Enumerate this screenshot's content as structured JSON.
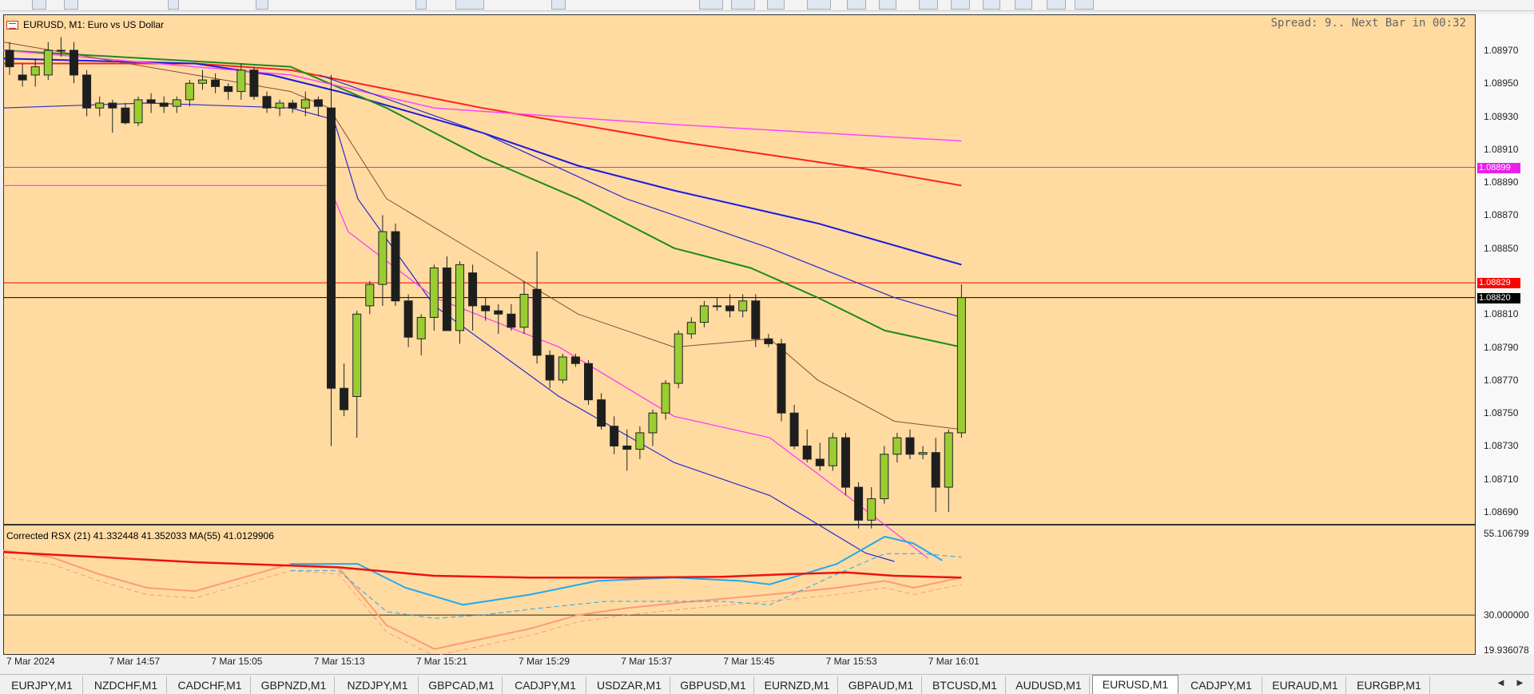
{
  "chart": {
    "title": "EURUSD, M1:  Euro vs US Dollar",
    "spread_text": "Spread: 9.. Next Bar in 00:32",
    "indicator_label": "Corrected RSX (21) 41.332448 41.352033 MA(55) 41.0129906",
    "price_axis": [
      "1.08970",
      "1.08950",
      "1.08930",
      "1.08910",
      "1.08890",
      "1.08870",
      "1.08850",
      "1.08810",
      "1.08790",
      "1.08770",
      "1.08750",
      "1.08730",
      "1.08710",
      "1.08690"
    ],
    "indicator_axis": [
      "55.106799",
      "30.000000",
      "19.936078"
    ],
    "time_axis": [
      "7 Mar 2024",
      "7 Mar 14:57",
      "7 Mar 15:05",
      "7 Mar 15:13",
      "7 Mar 15:21",
      "7 Mar 15:29",
      "7 Mar 15:37",
      "7 Mar 15:45",
      "7 Mar 15:53",
      "7 Mar 16:01"
    ],
    "price_tags": [
      {
        "value": "1.08899",
        "color": "#e91ee9"
      },
      {
        "value": "1.08829",
        "color": "#ff0000"
      },
      {
        "value": "1.08820",
        "color": "#000000"
      }
    ]
  },
  "chart_data": {
    "type": "candlestick",
    "ylim": [
      1.08675,
      1.08985
    ],
    "candles": [
      {
        "o": 1.0897,
        "h": 1.08975,
        "l": 1.08955,
        "c": 1.0896
      },
      {
        "o": 1.08955,
        "h": 1.08962,
        "l": 1.08948,
        "c": 1.08952
      },
      {
        "o": 1.08955,
        "h": 1.08965,
        "l": 1.08948,
        "c": 1.0896
      },
      {
        "o": 1.08955,
        "h": 1.08975,
        "l": 1.08952,
        "c": 1.0897
      },
      {
        "o": 1.0897,
        "h": 1.08978,
        "l": 1.08966,
        "c": 1.0897
      },
      {
        "o": 1.0897,
        "h": 1.08975,
        "l": 1.0895,
        "c": 1.08955
      },
      {
        "o": 1.08955,
        "h": 1.08958,
        "l": 1.0893,
        "c": 1.08935
      },
      {
        "o": 1.08935,
        "h": 1.08942,
        "l": 1.0893,
        "c": 1.08938
      },
      {
        "o": 1.08938,
        "h": 1.0894,
        "l": 1.0892,
        "c": 1.08935
      },
      {
        "o": 1.08935,
        "h": 1.08938,
        "l": 1.08925,
        "c": 1.08926
      },
      {
        "o": 1.08926,
        "h": 1.08942,
        "l": 1.08924,
        "c": 1.0894
      },
      {
        "o": 1.0894,
        "h": 1.08944,
        "l": 1.08932,
        "c": 1.08938
      },
      {
        "o": 1.08938,
        "h": 1.08942,
        "l": 1.08932,
        "c": 1.08936
      },
      {
        "o": 1.08936,
        "h": 1.08942,
        "l": 1.08932,
        "c": 1.0894
      },
      {
        "o": 1.0894,
        "h": 1.08952,
        "l": 1.08936,
        "c": 1.0895
      },
      {
        "o": 1.0895,
        "h": 1.08958,
        "l": 1.08946,
        "c": 1.08952
      },
      {
        "o": 1.08952,
        "h": 1.08956,
        "l": 1.08944,
        "c": 1.08948
      },
      {
        "o": 1.08948,
        "h": 1.0895,
        "l": 1.0894,
        "c": 1.08945
      },
      {
        "o": 1.08945,
        "h": 1.08962,
        "l": 1.0894,
        "c": 1.08958
      },
      {
        "o": 1.08958,
        "h": 1.0896,
        "l": 1.0894,
        "c": 1.08942
      },
      {
        "o": 1.08942,
        "h": 1.08945,
        "l": 1.08932,
        "c": 1.08935
      },
      {
        "o": 1.08935,
        "h": 1.0894,
        "l": 1.0893,
        "c": 1.08938
      },
      {
        "o": 1.08938,
        "h": 1.0894,
        "l": 1.08932,
        "c": 1.08935
      },
      {
        "o": 1.08935,
        "h": 1.08945,
        "l": 1.0893,
        "c": 1.0894
      },
      {
        "o": 1.0894,
        "h": 1.08942,
        "l": 1.0893,
        "c": 1.08936
      },
      {
        "o": 1.08935,
        "h": 1.08955,
        "l": 1.0873,
        "c": 1.08765
      },
      {
        "o": 1.08765,
        "h": 1.0878,
        "l": 1.08748,
        "c": 1.08752
      },
      {
        "o": 1.0876,
        "h": 1.08812,
        "l": 1.08735,
        "c": 1.0881
      },
      {
        "o": 1.08815,
        "h": 1.0883,
        "l": 1.0881,
        "c": 1.08828
      },
      {
        "o": 1.08828,
        "h": 1.0887,
        "l": 1.08815,
        "c": 1.0886
      },
      {
        "o": 1.0886,
        "h": 1.08865,
        "l": 1.08815,
        "c": 1.08818
      },
      {
        "o": 1.08818,
        "h": 1.08822,
        "l": 1.0879,
        "c": 1.08796
      },
      {
        "o": 1.08795,
        "h": 1.0881,
        "l": 1.08785,
        "c": 1.08808
      },
      {
        "o": 1.08808,
        "h": 1.0884,
        "l": 1.088,
        "c": 1.08838
      },
      {
        "o": 1.08838,
        "h": 1.08845,
        "l": 1.088,
        "c": 1.088
      },
      {
        "o": 1.088,
        "h": 1.08842,
        "l": 1.08792,
        "c": 1.0884
      },
      {
        "o": 1.08835,
        "h": 1.0884,
        "l": 1.088,
        "c": 1.08815
      },
      {
        "o": 1.08815,
        "h": 1.0882,
        "l": 1.08806,
        "c": 1.08812
      },
      {
        "o": 1.08812,
        "h": 1.08816,
        "l": 1.08798,
        "c": 1.0881
      },
      {
        "o": 1.0881,
        "h": 1.08816,
        "l": 1.088,
        "c": 1.08802
      },
      {
        "o": 1.08802,
        "h": 1.0883,
        "l": 1.08798,
        "c": 1.08822
      },
      {
        "o": 1.08825,
        "h": 1.08848,
        "l": 1.0878,
        "c": 1.08785
      },
      {
        "o": 1.08785,
        "h": 1.08788,
        "l": 1.08765,
        "c": 1.0877
      },
      {
        "o": 1.0877,
        "h": 1.08786,
        "l": 1.08768,
        "c": 1.08784
      },
      {
        "o": 1.08784,
        "h": 1.08786,
        "l": 1.08778,
        "c": 1.0878
      },
      {
        "o": 1.0878,
        "h": 1.08782,
        "l": 1.08755,
        "c": 1.08758
      },
      {
        "o": 1.08758,
        "h": 1.08762,
        "l": 1.0874,
        "c": 1.08742
      },
      {
        "o": 1.08742,
        "h": 1.08748,
        "l": 1.08725,
        "c": 1.0873
      },
      {
        "o": 1.0873,
        "h": 1.0874,
        "l": 1.08715,
        "c": 1.08728
      },
      {
        "o": 1.08728,
        "h": 1.08742,
        "l": 1.08722,
        "c": 1.08738
      },
      {
        "o": 1.08738,
        "h": 1.08752,
        "l": 1.0873,
        "c": 1.0875
      },
      {
        "o": 1.0875,
        "h": 1.0877,
        "l": 1.08746,
        "c": 1.08768
      },
      {
        "o": 1.08768,
        "h": 1.088,
        "l": 1.08765,
        "c": 1.08798
      },
      {
        "o": 1.08798,
        "h": 1.08808,
        "l": 1.08795,
        "c": 1.08805
      },
      {
        "o": 1.08805,
        "h": 1.08818,
        "l": 1.08802,
        "c": 1.08815
      },
      {
        "o": 1.08815,
        "h": 1.0882,
        "l": 1.08812,
        "c": 1.08815
      },
      {
        "o": 1.08815,
        "h": 1.08822,
        "l": 1.08808,
        "c": 1.08812
      },
      {
        "o": 1.08812,
        "h": 1.08822,
        "l": 1.08808,
        "c": 1.08818
      },
      {
        "o": 1.08818,
        "h": 1.08822,
        "l": 1.0879,
        "c": 1.08795
      },
      {
        "o": 1.08795,
        "h": 1.08798,
        "l": 1.0879,
        "c": 1.08792
      },
      {
        "o": 1.08792,
        "h": 1.08795,
        "l": 1.08745,
        "c": 1.0875
      },
      {
        "o": 1.0875,
        "h": 1.08755,
        "l": 1.08728,
        "c": 1.0873
      },
      {
        "o": 1.0873,
        "h": 1.0874,
        "l": 1.0872,
        "c": 1.08722
      },
      {
        "o": 1.08722,
        "h": 1.08732,
        "l": 1.08715,
        "c": 1.08718
      },
      {
        "o": 1.08718,
        "h": 1.08738,
        "l": 1.08715,
        "c": 1.08735
      },
      {
        "o": 1.08735,
        "h": 1.08738,
        "l": 1.087,
        "c": 1.08705
      },
      {
        "o": 1.08705,
        "h": 1.08708,
        "l": 1.0868,
        "c": 1.08685
      },
      {
        "o": 1.08685,
        "h": 1.08705,
        "l": 1.0868,
        "c": 1.08698
      },
      {
        "o": 1.08698,
        "h": 1.0873,
        "l": 1.08695,
        "c": 1.08725
      },
      {
        "o": 1.08725,
        "h": 1.08738,
        "l": 1.0872,
        "c": 1.08735
      },
      {
        "o": 1.08735,
        "h": 1.0874,
        "l": 1.08722,
        "c": 1.08725
      },
      {
        "o": 1.08725,
        "h": 1.0873,
        "l": 1.08722,
        "c": 1.08726
      },
      {
        "o": 1.08726,
        "h": 1.08735,
        "l": 1.0869,
        "c": 1.08705
      },
      {
        "o": 1.08705,
        "h": 1.0874,
        "l": 1.0869,
        "c": 1.08738
      },
      {
        "o": 1.08738,
        "h": 1.08828,
        "l": 1.08735,
        "c": 1.0882
      }
    ],
    "series": [
      {
        "color": "#ff2020",
        "width": 2,
        "values": [
          [
            0,
            1.08962
          ],
          [
            0.2,
            1.08962
          ],
          [
            0.3,
            1.08958
          ],
          [
            0.5,
            1.08935
          ],
          [
            0.7,
            1.08915
          ],
          [
            0.9,
            1.08898
          ],
          [
            1,
            1.08888
          ]
        ]
      },
      {
        "color": "#1a1ae0",
        "width": 2,
        "values": [
          [
            0,
            1.08965
          ],
          [
            0.2,
            1.08962
          ],
          [
            0.28,
            1.08955
          ],
          [
            0.35,
            1.08945
          ],
          [
            0.5,
            1.0892
          ],
          [
            0.6,
            1.089
          ],
          [
            0.7,
            1.08885
          ],
          [
            0.85,
            1.08865
          ],
          [
            1,
            1.0884
          ]
        ]
      },
      {
        "color": "#1f8a1f",
        "width": 2,
        "values": [
          [
            0,
            1.0897
          ],
          [
            0.15,
            1.08965
          ],
          [
            0.3,
            1.0896
          ],
          [
            0.4,
            1.08935
          ],
          [
            0.5,
            1.08905
          ],
          [
            0.6,
            1.0888
          ],
          [
            0.7,
            1.0885
          ],
          [
            0.78,
            1.08838
          ],
          [
            0.85,
            1.0882
          ],
          [
            0.92,
            1.088
          ],
          [
            1,
            1.0879
          ]
        ]
      },
      {
        "color": "#ff44ff",
        "width": 1.5,
        "values": [
          [
            0,
            1.0897
          ],
          [
            0.3,
            1.08955
          ],
          [
            0.45,
            1.08935
          ],
          [
            0.7,
            1.08925
          ],
          [
            1,
            1.08915
          ]
        ]
      },
      {
        "color": "#2b2bcc",
        "width": 1.2,
        "values": [
          [
            0,
            1.08935
          ],
          [
            0.15,
            1.08938
          ],
          [
            0.3,
            1.08935
          ],
          [
            0.345,
            1.08928
          ],
          [
            0.37,
            1.0888
          ],
          [
            0.45,
            1.08815
          ],
          [
            0.58,
            1.0876
          ],
          [
            0.7,
            1.0872
          ],
          [
            0.8,
            1.087
          ],
          [
            0.9,
            1.08665
          ],
          [
            0.93,
            1.0866
          ]
        ]
      },
      {
        "color": "#2b2bcc",
        "width": 1.2,
        "values": [
          [
            0.33,
            1.08955
          ],
          [
            0.5,
            1.0892
          ],
          [
            0.65,
            1.0888
          ],
          [
            0.8,
            1.0885
          ],
          [
            0.93,
            1.0882
          ],
          [
            1,
            1.08808
          ]
        ]
      },
      {
        "color": "#ff33ff",
        "width": 1.2,
        "values": [
          [
            0,
            1.08888
          ],
          [
            0.2,
            1.08888
          ],
          [
            0.34,
            1.08888
          ],
          [
            0.36,
            1.0886
          ],
          [
            0.45,
            1.0882
          ],
          [
            0.58,
            1.0879
          ],
          [
            0.7,
            1.08748
          ],
          [
            0.8,
            1.08735
          ],
          [
            0.88,
            1.087
          ],
          [
            0.965,
            1.08662
          ]
        ]
      },
      {
        "color": "#8b4a3a",
        "width": 1,
        "values": [
          [
            0,
            1.08975
          ],
          [
            0.1,
            1.08965
          ],
          [
            0.2,
            1.08955
          ],
          [
            0.3,
            1.08945
          ],
          [
            0.34,
            1.08935
          ],
          [
            0.4,
            1.0888
          ],
          [
            0.5,
            1.08845
          ],
          [
            0.6,
            1.0881
          ],
          [
            0.7,
            1.0879
          ],
          [
            0.8,
            1.08795
          ],
          [
            0.85,
            1.0877
          ],
          [
            0.93,
            1.08745
          ],
          [
            1,
            1.0874
          ]
        ]
      }
    ],
    "hlines": [
      {
        "value": 1.08899,
        "color": "#e91ee9"
      },
      {
        "value": 1.08829,
        "color": "#ff0000"
      },
      {
        "value": 1.0882,
        "color": "#000000"
      }
    ],
    "indicator": {
      "ylim": [
        19.936078,
        55.106799
      ],
      "level": 30.0,
      "ma_red": [
        [
          0,
          48.5
        ],
        [
          0.1,
          47.0
        ],
        [
          0.2,
          45.5
        ],
        [
          0.35,
          44.0
        ],
        [
          0.45,
          41.5
        ],
        [
          0.55,
          41.0
        ],
        [
          0.65,
          41.0
        ],
        [
          0.75,
          41.2
        ],
        [
          0.82,
          42.0
        ],
        [
          0.88,
          42.5
        ],
        [
          0.93,
          41.5
        ],
        [
          1,
          41.0
        ]
      ],
      "rsx_salmon": [
        [
          0,
          49
        ],
        [
          0.05,
          47
        ],
        [
          0.1,
          42
        ],
        [
          0.15,
          38
        ],
        [
          0.2,
          37
        ],
        [
          0.25,
          41
        ],
        [
          0.3,
          45
        ],
        [
          0.35,
          44
        ],
        [
          0.4,
          27
        ],
        [
          0.45,
          20
        ],
        [
          0.5,
          23
        ],
        [
          0.55,
          26
        ],
        [
          0.6,
          30
        ],
        [
          0.65,
          32
        ],
        [
          0.72,
          34
        ],
        [
          0.8,
          36
        ],
        [
          0.87,
          38
        ],
        [
          0.92,
          40
        ],
        [
          0.95,
          38
        ],
        [
          1,
          41
        ]
      ],
      "rsx_cyan": [
        [
          0.3,
          45
        ],
        [
          0.37,
          45
        ],
        [
          0.42,
          38
        ],
        [
          0.48,
          33
        ],
        [
          0.55,
          36
        ],
        [
          0.62,
          40
        ],
        [
          0.7,
          41
        ],
        [
          0.77,
          40
        ],
        [
          0.8,
          39
        ],
        [
          0.87,
          45
        ],
        [
          0.92,
          53
        ],
        [
          0.95,
          51
        ],
        [
          0.98,
          46
        ]
      ],
      "rsx_cyan_dash": [
        [
          0.3,
          43
        ],
        [
          0.35,
          43
        ],
        [
          0.4,
          31
        ],
        [
          0.45,
          29
        ],
        [
          0.5,
          30
        ],
        [
          0.56,
          32
        ],
        [
          0.63,
          34
        ],
        [
          0.7,
          34
        ],
        [
          0.75,
          34
        ],
        [
          0.8,
          33
        ],
        [
          0.87,
          42
        ],
        [
          0.92,
          48
        ],
        [
          0.96,
          48
        ],
        [
          1,
          47
        ]
      ]
    }
  },
  "tabs": [
    "EURJPY,M1",
    "NZDCHF,M1",
    "CADCHF,M1",
    "GBPNZD,M1",
    "NZDJPY,M1",
    "GBPCAD,M1",
    "CADJPY,M1",
    "USDZAR,M1",
    "GBPUSD,M1",
    "EURNZD,M1",
    "GBPAUD,M1",
    "BTCUSD,M1",
    "AUDUSD,M1",
    "EURUSD,M1",
    "CADJPY,M1",
    "EURAUD,M1",
    "EURGBP,M1"
  ],
  "active_tab": "EURUSD,M1",
  "nav": {
    "prev": "◄",
    "next": "►"
  }
}
